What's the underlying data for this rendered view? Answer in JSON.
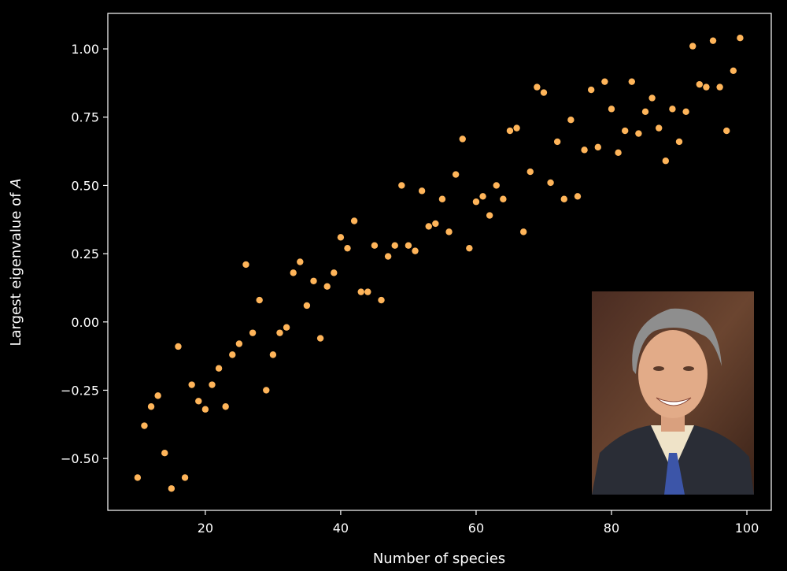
{
  "chart_data": {
    "type": "scatter",
    "title": "",
    "xlabel": "Number of species",
    "ylabel": "Largest eigenvalue of A",
    "ylabel_italic_part": "A",
    "xlim": [
      5.6,
      103.6
    ],
    "ylim": [
      -0.69,
      1.13
    ],
    "xticks": [
      20,
      40,
      60,
      80,
      100
    ],
    "yticks": [
      -0.5,
      -0.25,
      0.0,
      0.25,
      0.5,
      0.75,
      1.0
    ],
    "xtick_labels": [
      "20",
      "40",
      "60",
      "80",
      "100"
    ],
    "ytick_labels": [
      "−0.50",
      "−0.25",
      "0.00",
      "0.25",
      "0.50",
      "0.75",
      "1.00"
    ],
    "grid": false,
    "background": "#000000",
    "marker_color": "#ffb55a",
    "x": [
      10,
      11,
      12,
      13,
      14,
      15,
      16,
      17,
      18,
      19,
      20,
      21,
      22,
      23,
      24,
      25,
      26,
      27,
      28,
      29,
      30,
      31,
      32,
      33,
      34,
      35,
      36,
      37,
      38,
      39,
      40,
      41,
      42,
      43,
      44,
      45,
      46,
      47,
      48,
      49,
      50,
      51,
      52,
      53,
      54,
      55,
      56,
      57,
      58,
      59,
      60,
      61,
      62,
      63,
      64,
      65,
      66,
      67,
      68,
      69,
      70,
      71,
      72,
      73,
      74,
      75,
      76,
      77,
      78,
      79,
      80,
      81,
      82,
      83,
      84,
      85,
      86,
      87,
      88,
      89,
      90,
      91,
      92,
      93,
      94,
      95,
      96,
      97,
      98,
      99
    ],
    "y": [
      -0.57,
      -0.38,
      -0.31,
      -0.27,
      -0.48,
      -0.61,
      -0.09,
      -0.57,
      -0.23,
      -0.29,
      -0.32,
      -0.23,
      -0.17,
      -0.31,
      -0.12,
      -0.08,
      0.21,
      -0.04,
      0.08,
      -0.25,
      -0.12,
      -0.04,
      -0.02,
      0.18,
      0.22,
      0.06,
      0.15,
      -0.06,
      0.13,
      0.18,
      0.31,
      0.27,
      0.37,
      0.11,
      0.11,
      0.28,
      0.08,
      0.24,
      0.28,
      0.5,
      0.28,
      0.26,
      0.48,
      0.35,
      0.36,
      0.45,
      0.33,
      0.54,
      0.67,
      0.27,
      0.44,
      0.46,
      0.39,
      0.5,
      0.45,
      0.7,
      0.71,
      0.33,
      0.55,
      0.86,
      0.84,
      0.51,
      0.66,
      0.45,
      0.74,
      0.46,
      0.63,
      0.85,
      0.64,
      0.88,
      0.78,
      0.62,
      0.7,
      0.88,
      0.69,
      0.77,
      0.82,
      0.71,
      0.59,
      0.78,
      0.66,
      0.77,
      1.01,
      0.87,
      0.86,
      1.03,
      0.86,
      0.7,
      0.92,
      1.04
    ]
  },
  "inset": {
    "icon": "portrait-photo"
  }
}
